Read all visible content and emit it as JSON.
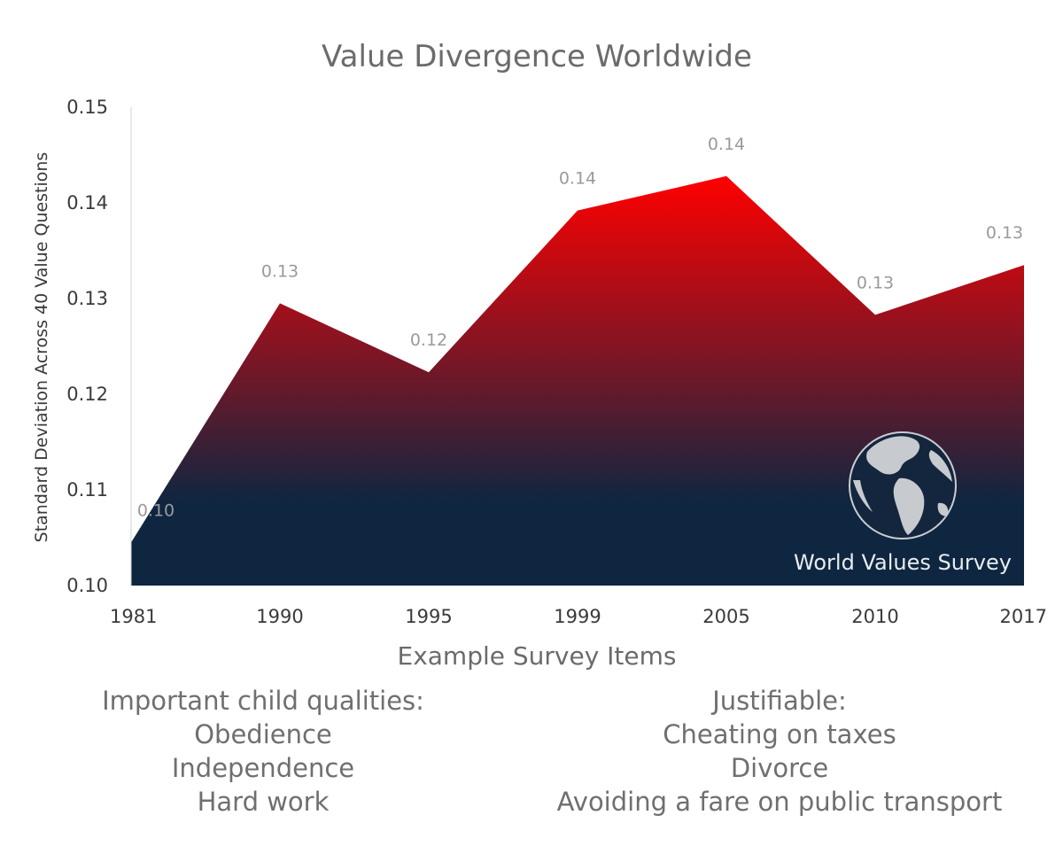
{
  "chart_data": {
    "type": "area",
    "title": "Value Divergence Worldwide",
    "xlabel": "Example Survey Items",
    "ylabel": "Standard Deviation Across 40 Value Questions",
    "categories": [
      "1981",
      "1990",
      "1995",
      "1999",
      "2005",
      "2010",
      "2017"
    ],
    "values": [
      0.1045,
      0.1295,
      0.1223,
      0.1392,
      0.1428,
      0.1283,
      0.1335
    ],
    "data_labels": [
      "0.10",
      "0.13",
      "0.12",
      "0.14",
      "0.14",
      "0.13",
      "0.13"
    ],
    "ylim": [
      0.1,
      0.15
    ],
    "yticks": [
      0.1,
      0.11,
      0.12,
      0.13,
      0.14,
      0.15
    ],
    "ytick_labels": [
      "0.10",
      "0.11",
      "0.12",
      "0.13",
      "0.14",
      "0.15"
    ],
    "grid": false,
    "legend": "none",
    "fill_colors": {
      "top": "#ff0000",
      "middle": "#7a1626",
      "bottom": "#0e2640"
    }
  },
  "watermark": {
    "text": "World Values Survey",
    "icon": "globe-icon"
  },
  "notes": {
    "left": [
      "Important child qualities:",
      "Obedience",
      "Independence",
      "Hard work"
    ],
    "right": [
      "Justifiable:",
      "Cheating on taxes",
      "Divorce",
      "Avoiding a fare on public transport"
    ]
  }
}
